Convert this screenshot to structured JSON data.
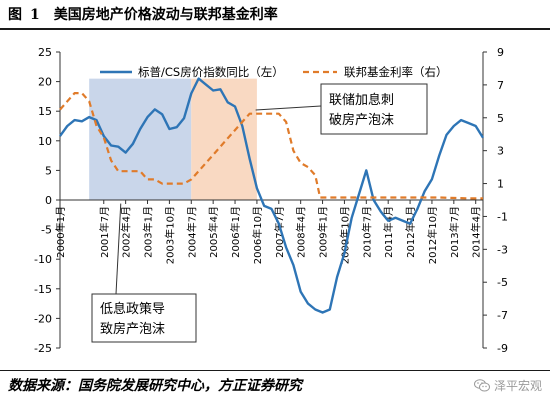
{
  "figure": {
    "label": "图",
    "number": "1",
    "title": "美国房地产价格波动与联邦基金利率",
    "source": "数据来源：国务院发展研究中心，方正证券研究",
    "watermark": "泽平宏观"
  },
  "chart_data": {
    "type": "line",
    "x_axis": {
      "start": "2000-01",
      "end": "2014-07",
      "tick_labels": [
        "2000年1月",
        "2001年7月",
        "2002年4月",
        "2003年1月",
        "2003年10月",
        "2004年7月",
        "2005年4月",
        "2006年1月",
        "2006年10月",
        "2007年7月",
        "2008年4月",
        "2009年1月",
        "2009年10月",
        "2010年7月",
        "2011年4月",
        "2012年1月",
        "2012年10月",
        "2013年7月",
        "2014年4月"
      ],
      "tick_dates": [
        "2000-01",
        "2001-07",
        "2002-04",
        "2003-01",
        "2003-10",
        "2004-07",
        "2005-04",
        "2006-01",
        "2006-10",
        "2007-07",
        "2008-04",
        "2009-01",
        "2009-10",
        "2010-07",
        "2011-04",
        "2012-01",
        "2012-10",
        "2013-07",
        "2014-04"
      ]
    },
    "y_left": {
      "ylim": [
        -25,
        25
      ],
      "ticks": [
        -25,
        -20,
        -15,
        -10,
        -5,
        0,
        5,
        10,
        15,
        20,
        25
      ]
    },
    "y_right": {
      "ylim": [
        -9,
        9
      ],
      "ticks": [
        -9,
        -7,
        -5,
        -3,
        -1,
        1,
        3,
        5,
        7,
        9
      ]
    },
    "grid": false,
    "legend_position": "top",
    "series": [
      {
        "name": "标普/CS房价指数同比（左）",
        "axis": "left",
        "color": "#2e75b6",
        "style": "solid",
        "points": [
          [
            "2000-01",
            10.8
          ],
          [
            "2000-04",
            12.5
          ],
          [
            "2000-07",
            13.5
          ],
          [
            "2000-10",
            13.3
          ],
          [
            "2001-01",
            14.0
          ],
          [
            "2001-04",
            13.5
          ],
          [
            "2001-07",
            10.8
          ],
          [
            "2001-10",
            9.2
          ],
          [
            "2002-01",
            9.0
          ],
          [
            "2002-04",
            8.0
          ],
          [
            "2002-07",
            9.5
          ],
          [
            "2002-10",
            12.0
          ],
          [
            "2003-01",
            14.0
          ],
          [
            "2003-04",
            15.3
          ],
          [
            "2003-07",
            14.5
          ],
          [
            "2003-10",
            12.0
          ],
          [
            "2004-01",
            12.3
          ],
          [
            "2004-04",
            13.8
          ],
          [
            "2004-07",
            18.0
          ],
          [
            "2004-10",
            20.5
          ],
          [
            "2005-01",
            19.5
          ],
          [
            "2005-04",
            18.5
          ],
          [
            "2005-07",
            18.7
          ],
          [
            "2005-10",
            16.5
          ],
          [
            "2006-01",
            15.8
          ],
          [
            "2006-04",
            12.5
          ],
          [
            "2006-07",
            7.0
          ],
          [
            "2006-10",
            2.0
          ],
          [
            "2007-01",
            -1.0
          ],
          [
            "2007-04",
            -1.5
          ],
          [
            "2007-07",
            -4.0
          ],
          [
            "2007-10",
            -8.0
          ],
          [
            "2008-01",
            -11.0
          ],
          [
            "2008-04",
            -15.5
          ],
          [
            "2008-07",
            -17.5
          ],
          [
            "2008-10",
            -18.5
          ],
          [
            "2009-01",
            -19.0
          ],
          [
            "2009-04",
            -18.5
          ],
          [
            "2009-07",
            -13.0
          ],
          [
            "2009-10",
            -9.0
          ],
          [
            "2010-01",
            -3.0
          ],
          [
            "2010-04",
            1.0
          ],
          [
            "2010-07",
            5.0
          ],
          [
            "2010-10",
            0.0
          ],
          [
            "2011-01",
            -2.0
          ],
          [
            "2011-04",
            -3.5
          ],
          [
            "2011-07",
            -3.0
          ],
          [
            "2011-10",
            -3.5
          ],
          [
            "2012-01",
            -4.0
          ],
          [
            "2012-04",
            -1.5
          ],
          [
            "2012-07",
            1.5
          ],
          [
            "2012-10",
            3.5
          ],
          [
            "2013-01",
            7.5
          ],
          [
            "2013-04",
            11.0
          ],
          [
            "2013-07",
            12.5
          ],
          [
            "2013-10",
            13.5
          ],
          [
            "2014-01",
            13.0
          ],
          [
            "2014-04",
            12.5
          ],
          [
            "2014-07",
            10.5
          ]
        ]
      },
      {
        "name": "联邦基金利率（右）",
        "axis": "right",
        "color": "#e07b2a",
        "style": "dashed",
        "points": [
          [
            "2000-01",
            5.5
          ],
          [
            "2000-04",
            6.0
          ],
          [
            "2000-07",
            6.5
          ],
          [
            "2000-10",
            6.5
          ],
          [
            "2001-01",
            6.0
          ],
          [
            "2001-04",
            4.5
          ],
          [
            "2001-07",
            3.8
          ],
          [
            "2001-10",
            2.4
          ],
          [
            "2002-01",
            1.75
          ],
          [
            "2002-04",
            1.75
          ],
          [
            "2002-07",
            1.75
          ],
          [
            "2002-10",
            1.75
          ],
          [
            "2003-01",
            1.25
          ],
          [
            "2003-04",
            1.25
          ],
          [
            "2003-07",
            1.0
          ],
          [
            "2003-10",
            1.0
          ],
          [
            "2004-01",
            1.0
          ],
          [
            "2004-04",
            1.0
          ],
          [
            "2004-07",
            1.25
          ],
          [
            "2004-10",
            1.75
          ],
          [
            "2005-01",
            2.25
          ],
          [
            "2005-04",
            2.75
          ],
          [
            "2005-07",
            3.25
          ],
          [
            "2005-10",
            3.75
          ],
          [
            "2006-01",
            4.25
          ],
          [
            "2006-04",
            4.75
          ],
          [
            "2006-07",
            5.25
          ],
          [
            "2006-10",
            5.25
          ],
          [
            "2007-01",
            5.25
          ],
          [
            "2007-04",
            5.25
          ],
          [
            "2007-07",
            5.25
          ],
          [
            "2007-10",
            4.75
          ],
          [
            "2008-01",
            3.0
          ],
          [
            "2008-04",
            2.25
          ],
          [
            "2008-07",
            2.0
          ],
          [
            "2008-10",
            1.5
          ],
          [
            "2008-12",
            0.15
          ],
          [
            "2009-07",
            0.15
          ],
          [
            "2010-01",
            0.15
          ],
          [
            "2011-01",
            0.15
          ],
          [
            "2012-01",
            0.15
          ],
          [
            "2013-01",
            0.15
          ],
          [
            "2014-01",
            0.1
          ],
          [
            "2014-07",
            0.1
          ]
        ]
      }
    ],
    "shaded_regions": [
      {
        "start": "2001-01",
        "end": "2004-07",
        "color": "#c9d6ea"
      },
      {
        "start": "2004-07",
        "end": "2006-10",
        "color": "#f9d9c2"
      }
    ],
    "annotations": [
      {
        "text_lines": [
          "联储加息刺",
          "破房产泡沫"
        ]
      },
      {
        "text_lines": [
          "低息政策导",
          "致房产泡沫"
        ]
      }
    ]
  }
}
